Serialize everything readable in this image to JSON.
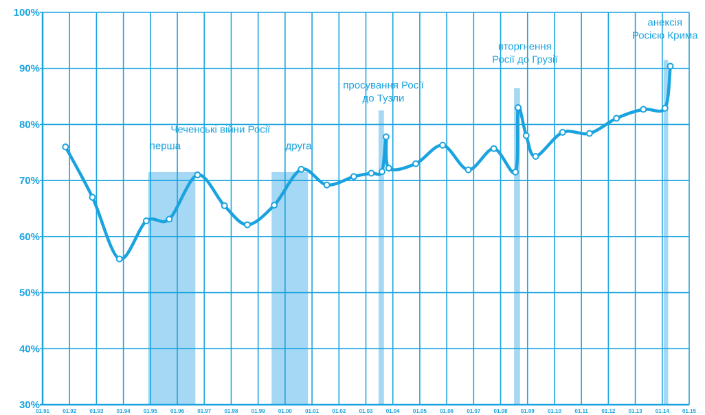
{
  "colors": {
    "accent": "#1aa3df",
    "grid": "#1aa3df",
    "band": "#a4d8f4",
    "point_fill": "#ffffff"
  },
  "chart_data": {
    "type": "line",
    "title": "",
    "xlabel": "",
    "ylabel": "",
    "ylim": [
      30,
      100
    ],
    "xlim": [
      1991,
      2015
    ],
    "grid": true,
    "y_ticks": [
      "30%",
      "40%",
      "50%",
      "60%",
      "70%",
      "80%",
      "90%",
      "100%"
    ],
    "x_ticks": [
      "01.91",
      "01.92",
      "01.93",
      "01.94",
      "01.95",
      "01.96",
      "01.97",
      "01.98",
      "01.99",
      "01.00",
      "01.01",
      "01.02",
      "01.03",
      "01.04",
      "01.05",
      "01.06",
      "01.07",
      "01.08",
      "01.09",
      "01.10",
      "01.11",
      "01.12",
      "01.13",
      "01.14",
      "01.15"
    ],
    "series": [
      {
        "name": "",
        "points": [
          [
            1991.85,
            76
          ],
          [
            1992.85,
            67
          ],
          [
            1993.85,
            56
          ],
          [
            1994.85,
            62.8
          ],
          [
            1995.7,
            63.1
          ],
          [
            1996.75,
            71
          ],
          [
            1997.75,
            65.5
          ],
          [
            1998.6,
            62.1
          ],
          [
            1999.6,
            65.6
          ],
          [
            2000.6,
            72
          ],
          [
            2001.55,
            69.2
          ],
          [
            2002.55,
            70.7
          ],
          [
            2003.2,
            71.3
          ],
          [
            2003.6,
            71.6
          ],
          [
            2003.75,
            77.8
          ],
          [
            2003.85,
            72.2
          ],
          [
            2004.85,
            73
          ],
          [
            2005.85,
            76.3
          ],
          [
            2006.8,
            71.9
          ],
          [
            2007.75,
            75.7
          ],
          [
            2008.55,
            71.5
          ],
          [
            2008.65,
            83
          ],
          [
            2008.95,
            78
          ],
          [
            2009.3,
            74.3
          ],
          [
            2010.3,
            78.6
          ],
          [
            2011.3,
            78.4
          ],
          [
            2012.3,
            81.1
          ],
          [
            2013.3,
            82.7
          ],
          [
            2014.1,
            82.9
          ],
          [
            2014.3,
            90.4
          ]
        ]
      }
    ],
    "bands": [
      {
        "x0": 1994.92,
        "x1": 1996.67,
        "top": 71.5
      },
      {
        "x0": 1999.5,
        "x1": 2000.85,
        "top": 71.5
      },
      {
        "x0": 2003.47,
        "x1": 2003.67,
        "top": 82.5
      },
      {
        "x0": 2008.5,
        "x1": 2008.72,
        "top": 86.5
      },
      {
        "x0": 2014.05,
        "x1": 2014.22,
        "top": 91.5
      }
    ],
    "annotations": [
      {
        "lines": [
          "Чеченські війни Росії"
        ],
        "x": 1997.6,
        "y": 78.5,
        "anchor": "middle"
      },
      {
        "lines": [
          "перша"
        ],
        "x": 1995.55,
        "y": 75.6,
        "anchor": "middle"
      },
      {
        "lines": [
          "друга"
        ],
        "x": 2000.5,
        "y": 75.6,
        "anchor": "middle"
      },
      {
        "lines": [
          "просування Росії",
          "до Тузли"
        ],
        "x": 2003.65,
        "y": 86.4,
        "anchor": "middle"
      },
      {
        "lines": [
          "вторгнення",
          "Росії до Грузії"
        ],
        "x": 2008.9,
        "y": 93.3,
        "anchor": "middle"
      },
      {
        "lines": [
          "анексія",
          "Росією Крима"
        ],
        "x": 2014.1,
        "y": 97.6,
        "anchor": "middle"
      }
    ]
  }
}
